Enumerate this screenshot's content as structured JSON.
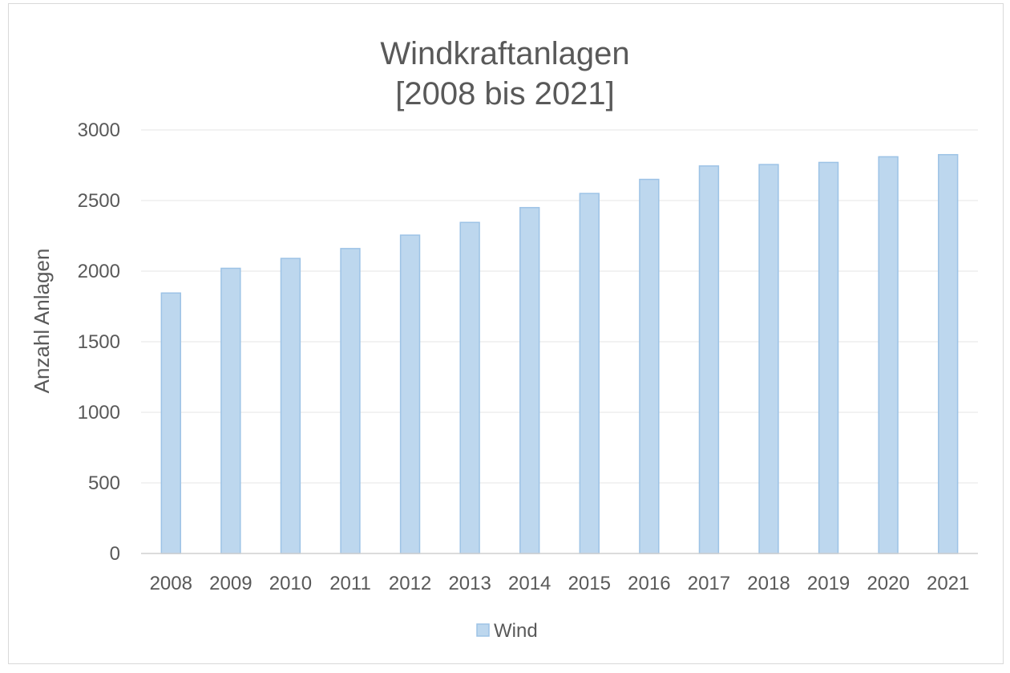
{
  "chart_data": {
    "type": "bar",
    "title_lines": [
      "Windkraftanlagen",
      "[2008 bis 2021]"
    ],
    "xlabel": "",
    "ylabel": "Anzahl Anlagen",
    "categories": [
      "2008",
      "2009",
      "2010",
      "2011",
      "2012",
      "2013",
      "2014",
      "2015",
      "2016",
      "2017",
      "2018",
      "2019",
      "2020",
      "2021"
    ],
    "series": [
      {
        "name": "Wind",
        "values": [
          1845,
          2020,
          2090,
          2160,
          2255,
          2345,
          2450,
          2550,
          2650,
          2745,
          2755,
          2770,
          2810,
          2825
        ],
        "color": "#bdd7ee",
        "border_color": "#9dc3e6"
      }
    ],
    "ylim": [
      0,
      3000
    ],
    "yticks": [
      "0",
      "500",
      "1000",
      "1500",
      "2000",
      "2500",
      "3000"
    ],
    "grid": true,
    "legend_position": "bottom"
  },
  "colors": {
    "text": "#595959",
    "gridline": "#eeeeee",
    "axis_line": "#d0d0d0",
    "frame_border": "#d9d9d9"
  }
}
